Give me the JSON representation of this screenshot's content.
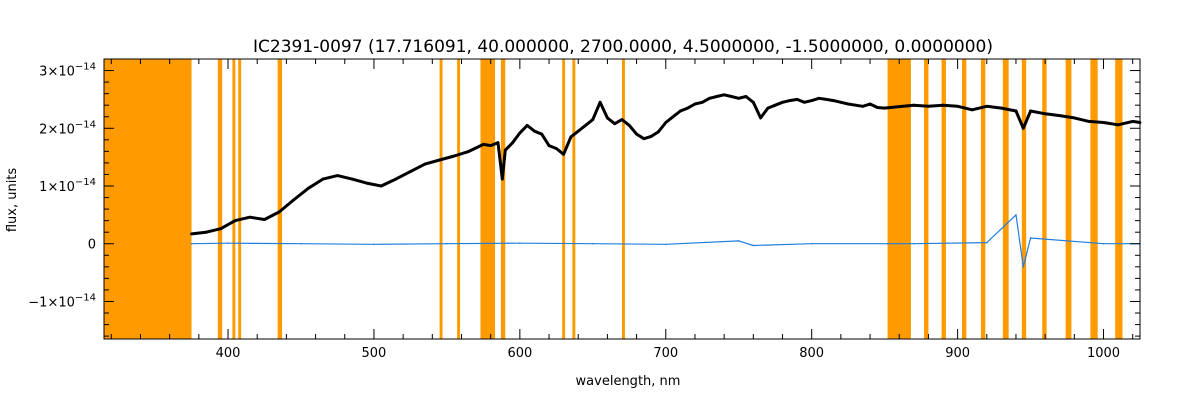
{
  "chart_data": {
    "type": "line",
    "title": "IC2391-0097   (17.716091, 40.000000, 2700.0000, 4.5000000, -1.5000000, 0.0000000)",
    "xlabel": "wavelength, nm",
    "ylabel": "flux, units",
    "xlim": [
      315,
      1025
    ],
    "ylim": [
      -1.65e-14,
      3.2e-14
    ],
    "x_ticks": [
      400,
      500,
      600,
      700,
      800,
      900,
      1000
    ],
    "x_tick_labels": [
      "400",
      "500",
      "600",
      "700",
      "800",
      "900",
      "1000"
    ],
    "y_ticks": [
      -1e-14,
      0,
      1e-14,
      2e-14,
      3e-14
    ],
    "y_tick_labels": [
      {
        "mantissa": "−1×10",
        "exp": "−14"
      },
      {
        "mantissa": "0",
        "exp": ""
      },
      {
        "mantissa": "1×10",
        "exp": "−14"
      },
      {
        "mantissa": "2×10",
        "exp": "−14"
      },
      {
        "mantissa": "3×10",
        "exp": "−14"
      }
    ],
    "masked_regions": [
      [
        315,
        375
      ],
      [
        393,
        396
      ],
      [
        403,
        405
      ],
      [
        407,
        409
      ],
      [
        434,
        437
      ],
      [
        545,
        547
      ],
      [
        557,
        559
      ],
      [
        573,
        583
      ],
      [
        587,
        590
      ],
      [
        629,
        631
      ],
      [
        636,
        638
      ],
      [
        670,
        672
      ],
      [
        852,
        868
      ],
      [
        877,
        880
      ],
      [
        889,
        892
      ],
      [
        903,
        906
      ],
      [
        916,
        919
      ],
      [
        931,
        935
      ],
      [
        944,
        947
      ],
      [
        958,
        961
      ],
      [
        974,
        978
      ],
      [
        991,
        996
      ],
      [
        1008,
        1013
      ]
    ],
    "series": [
      {
        "color": "#000000",
        "x": [
          375,
          385,
          395,
          405,
          415,
          425,
          435,
          445,
          455,
          465,
          475,
          485,
          495,
          505,
          515,
          525,
          535,
          545,
          555,
          565,
          575,
          580,
          585,
          588,
          590,
          595,
          600,
          605,
          610,
          615,
          620,
          625,
          630,
          635,
          640,
          645,
          650,
          655,
          660,
          665,
          670,
          675,
          680,
          685,
          690,
          695,
          700,
          705,
          710,
          715,
          720,
          725,
          730,
          735,
          740,
          745,
          750,
          755,
          760,
          765,
          770,
          775,
          780,
          785,
          790,
          795,
          800,
          805,
          810,
          815,
          820,
          825,
          830,
          835,
          840,
          845,
          850,
          870,
          880,
          890,
          900,
          910,
          920,
          930,
          940,
          945,
          950,
          960,
          970,
          980,
          990,
          1000,
          1010,
          1020,
          1025
        ],
        "y": [
          1.7e-15,
          2e-15,
          2.6e-15,
          4e-15,
          4.6e-15,
          4.2e-15,
          5.5e-15,
          7.6e-15,
          9.6e-15,
          1.12e-14,
          1.18e-14,
          1.12e-14,
          1.05e-14,
          1e-14,
          1.12e-14,
          1.25e-14,
          1.38e-14,
          1.45e-14,
          1.52e-14,
          1.6e-14,
          1.72e-14,
          1.7e-14,
          1.75e-14,
          1.12e-14,
          1.62e-14,
          1.75e-14,
          1.92e-14,
          2.05e-14,
          1.95e-14,
          1.9e-14,
          1.7e-14,
          1.65e-14,
          1.55e-14,
          1.85e-14,
          1.95e-14,
          2.05e-14,
          2.15e-14,
          2.45e-14,
          2.18e-14,
          2.08e-14,
          2.15e-14,
          2.05e-14,
          1.9e-14,
          1.82e-14,
          1.86e-14,
          1.94e-14,
          2.1e-14,
          2.2e-14,
          2.3e-14,
          2.35e-14,
          2.42e-14,
          2.45e-14,
          2.52e-14,
          2.55e-14,
          2.58e-14,
          2.55e-14,
          2.52e-14,
          2.55e-14,
          2.45e-14,
          2.18e-14,
          2.35e-14,
          2.4e-14,
          2.45e-14,
          2.48e-14,
          2.5e-14,
          2.45e-14,
          2.48e-14,
          2.52e-14,
          2.5e-14,
          2.48e-14,
          2.45e-14,
          2.42e-14,
          2.4e-14,
          2.38e-14,
          2.42e-14,
          2.36e-14,
          2.35e-14,
          2.4e-14,
          2.38e-14,
          2.4e-14,
          2.38e-14,
          2.32e-14,
          2.38e-14,
          2.35e-14,
          2.3e-14,
          2e-14,
          2.3e-14,
          2.25e-14,
          2.22e-14,
          2.18e-14,
          2.12e-14,
          2.1e-14,
          2.06e-14,
          2.12e-14,
          2.1e-14
        ]
      },
      {
        "color": "#1f7fe0",
        "x": [
          375,
          400,
          450,
          500,
          550,
          600,
          650,
          700,
          750,
          760,
          800,
          852,
          870,
          920,
          940,
          945,
          950,
          1000,
          1025
        ],
        "y": [
          0.0,
          1e-16,
          0.0,
          -1e-16,
          0.0,
          1e-16,
          0.0,
          -1e-16,
          5e-16,
          -3e-16,
          0.0,
          0.0,
          0.0,
          2e-16,
          5e-15,
          -4e-15,
          1e-15,
          0.0,
          0.0
        ]
      }
    ],
    "grid": false,
    "mask_color": "#ff9b00"
  }
}
